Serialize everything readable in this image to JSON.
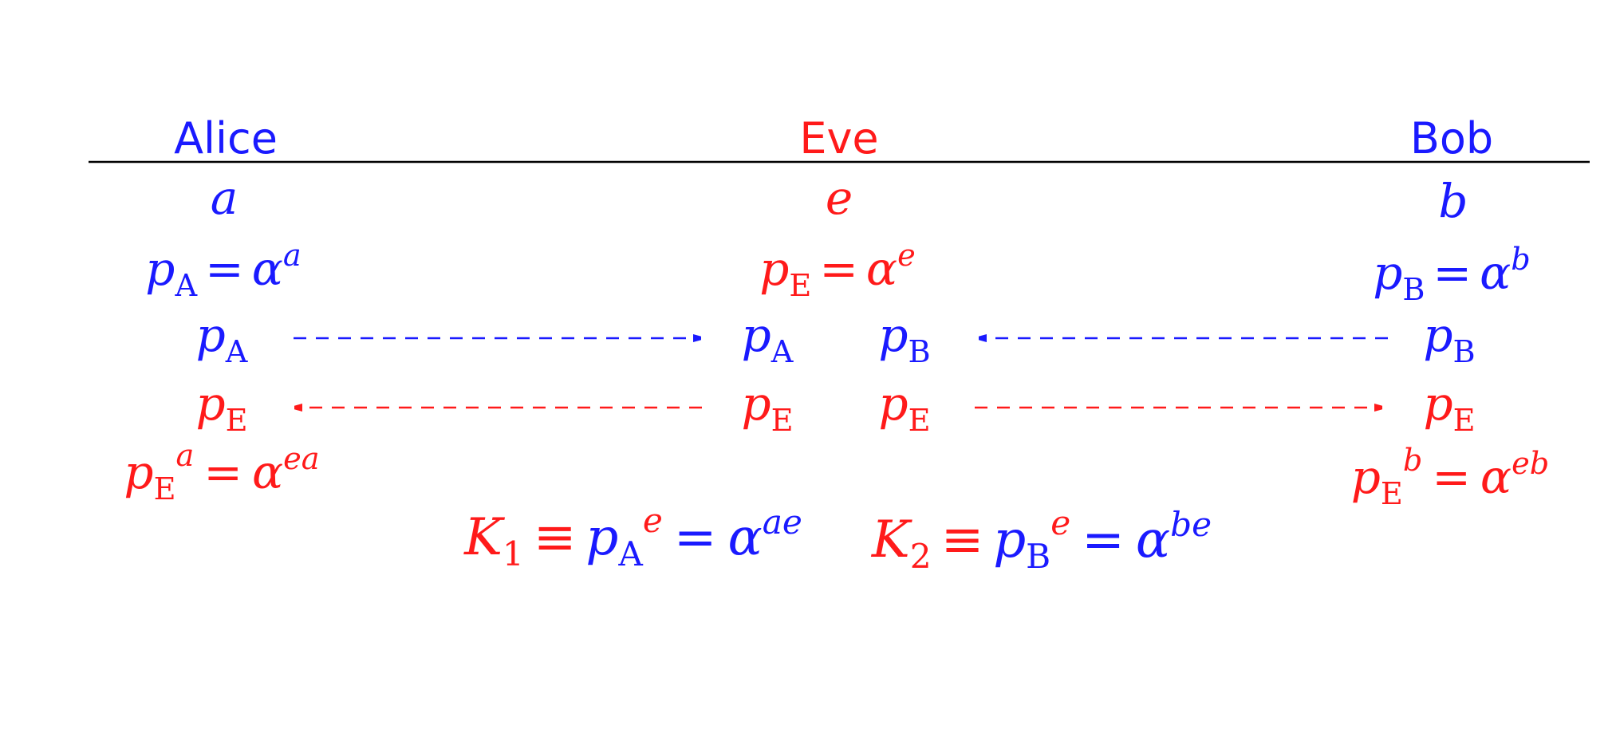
{
  "colors": {
    "alice_bob": "#1a1aff",
    "eve": "#ff1a1a",
    "rule": "#000000"
  },
  "parties": {
    "alice": "Alice",
    "eve": "Eve",
    "bob": "Bob"
  },
  "secrets": {
    "alice": "a",
    "eve": "e",
    "bob": "b"
  },
  "publics": {
    "alice": {
      "p": "p",
      "sub": "A",
      "eq": "=",
      "base": "α",
      "exp": "a"
    },
    "eve": {
      "p": "p",
      "sub": "E",
      "eq": "=",
      "base": "α",
      "exp": "e"
    },
    "bob": {
      "p": "p",
      "sub": "B",
      "eq": "=",
      "base": "α",
      "exp": "b"
    }
  },
  "messages": {
    "pA": {
      "p": "p",
      "sub": "A"
    },
    "pB": {
      "p": "p",
      "sub": "B"
    },
    "pE": {
      "p": "p",
      "sub": "E"
    }
  },
  "derived": {
    "alice": {
      "p": "p",
      "sub": "E",
      "pow": "a",
      "eq": "=",
      "base": "α",
      "exp": "ea"
    },
    "bob": {
      "p": "p",
      "sub": "E",
      "pow": "b",
      "eq": "=",
      "base": "α",
      "exp": "eb"
    }
  },
  "keys": {
    "k1": {
      "K": "K",
      "idx": "1",
      "equiv": "≡",
      "p": "p",
      "sub": "A",
      "pow": "e",
      "eq": "=",
      "base": "α",
      "exp": "ae"
    },
    "k2": {
      "K": "K",
      "idx": "2",
      "equiv": "≡",
      "p": "p",
      "sub": "B",
      "pow": "e",
      "eq": "=",
      "base": "α",
      "exp": "be"
    }
  }
}
